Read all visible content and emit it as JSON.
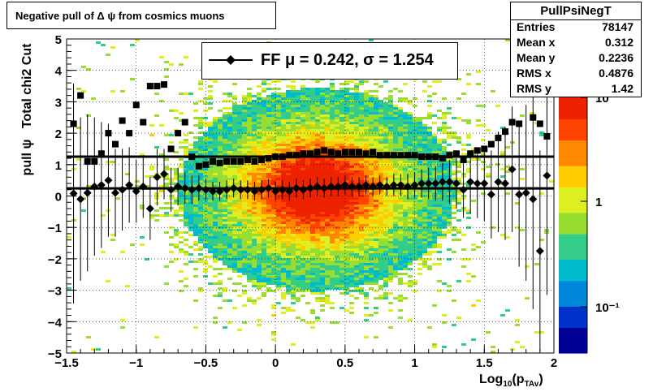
{
  "title": "Negative pull of Δ ψ from cosmics muons",
  "stats": {
    "name": "PullPsiNegT",
    "rows": [
      {
        "key": "Entries",
        "value": "78147"
      },
      {
        "key": "Mean x",
        "value": "0.312"
      },
      {
        "key": "Mean y",
        "value": "0.2236"
      },
      {
        "key": "RMS x",
        "value": "0.4876"
      },
      {
        "key": "RMS y",
        "value": "1.42"
      }
    ]
  },
  "legend": {
    "text": "FF μ =  0.242, σ =   1.254"
  },
  "colors": {
    "palette": [
      "#000099",
      "#0033cc",
      "#0088dd",
      "#00bbcc",
      "#33cc88",
      "#99dd33",
      "#ddee22",
      "#ffcc00",
      "#ff8800",
      "#ff4400",
      "#ee2200"
    ]
  },
  "chart_data": {
    "type": "heatmap",
    "title": "Negative pull of Δ ψ from cosmics muons",
    "xlabel": "Log10(pTAv)",
    "ylabel": "pull ψ   Total chi2 Cut",
    "xlim": [
      -1.5,
      2
    ],
    "ylim": [
      -5,
      5
    ],
    "x_ticks": [
      "−1.5",
      "−1",
      "−0.5",
      "0",
      "0.5",
      "1",
      "1.5",
      "2"
    ],
    "y_ticks": [
      "−5",
      "−4",
      "−3",
      "−2",
      "−1",
      "0",
      "1",
      "2",
      "3",
      "4",
      "5"
    ],
    "color_scale": {
      "log": true,
      "labels": [
        "10⁻¹",
        "1",
        "10"
      ]
    },
    "grid": true,
    "legend_position": "top-center",
    "fit_lines": [
      {
        "name": "mean",
        "value": 0.242
      },
      {
        "name": "sigma",
        "value": 1.254
      }
    ],
    "series": [
      {
        "name": "mean",
        "marker": "diamond",
        "x": [
          -1.45,
          -1.4,
          -1.35,
          -1.3,
          -1.25,
          -1.2,
          -1.15,
          -1.1,
          -1.05,
          -1.0,
          -0.95,
          -0.9,
          -0.85,
          -0.8,
          -0.75,
          -0.7,
          -0.65,
          -0.6,
          -0.55,
          -0.5,
          -0.45,
          -0.4,
          -0.35,
          -0.3,
          -0.25,
          -0.2,
          -0.15,
          -0.1,
          -0.05,
          0.0,
          0.05,
          0.1,
          0.15,
          0.2,
          0.25,
          0.3,
          0.35,
          0.4,
          0.45,
          0.5,
          0.55,
          0.6,
          0.65,
          0.7,
          0.75,
          0.8,
          0.85,
          0.9,
          0.95,
          1.0,
          1.05,
          1.1,
          1.15,
          1.2,
          1.25,
          1.3,
          1.35,
          1.4,
          1.45,
          1.5,
          1.55,
          1.6,
          1.65,
          1.7,
          1.75,
          1.8,
          1.85,
          1.9,
          1.95
        ],
        "y": [
          0.08,
          -0.1,
          0.1,
          0.3,
          0.35,
          0.5,
          0.1,
          0.2,
          0.35,
          0.15,
          0.3,
          -0.4,
          0.6,
          0.7,
          0.2,
          0.3,
          0.25,
          0.2,
          0.25,
          0.2,
          0.15,
          0.15,
          0.2,
          0.25,
          0.2,
          0.2,
          0.15,
          0.2,
          0.25,
          0.15,
          0.2,
          0.15,
          0.25,
          0.2,
          0.25,
          0.3,
          0.25,
          0.3,
          0.3,
          0.35,
          0.3,
          0.3,
          0.35,
          0.3,
          0.35,
          0.3,
          0.35,
          0.35,
          0.3,
          0.35,
          0.4,
          0.4,
          0.4,
          0.45,
          0.45,
          0.4,
          0.2,
          0.45,
          0.4,
          0.4,
          0.05,
          0.45,
          0.4,
          0.85,
          0.05,
          0.1,
          -0.1,
          -1.75,
          0.65
        ],
        "err": [
          3.5,
          2.6,
          2.5,
          2.2,
          2.0,
          1.8,
          1.4,
          1.3,
          1.2,
          1.0,
          1.0,
          1.0,
          0.9,
          0.8,
          0.7,
          0.6,
          0.5,
          0.45,
          0.4,
          0.35,
          0.3,
          0.3,
          0.3,
          0.3,
          0.3,
          0.3,
          0.3,
          0.3,
          0.3,
          0.3,
          0.3,
          0.3,
          0.3,
          0.3,
          0.3,
          0.3,
          0.3,
          0.3,
          0.3,
          0.3,
          0.3,
          0.3,
          0.3,
          0.3,
          0.3,
          0.3,
          0.35,
          0.35,
          0.4,
          0.4,
          0.45,
          0.5,
          0.55,
          0.6,
          0.7,
          0.8,
          0.9,
          1.0,
          1.1,
          1.2,
          1.4,
          1.6,
          1.8,
          2.0,
          2.3,
          2.8,
          3.5,
          3.2,
          3.8
        ]
      },
      {
        "name": "sigma",
        "marker": "square",
        "x": [
          -1.45,
          -1.4,
          -1.35,
          -1.3,
          -1.25,
          -1.2,
          -1.15,
          -1.1,
          -1.05,
          -1.0,
          -0.95,
          -0.9,
          -0.85,
          -0.8,
          -0.75,
          -0.7,
          -0.65,
          -0.6,
          -0.55,
          -0.5,
          -0.45,
          -0.4,
          -0.35,
          -0.3,
          -0.25,
          -0.2,
          -0.15,
          -0.1,
          -0.05,
          0.0,
          0.05,
          0.1,
          0.15,
          0.2,
          0.25,
          0.3,
          0.35,
          0.4,
          0.45,
          0.5,
          0.55,
          0.6,
          0.65,
          0.7,
          0.75,
          0.8,
          0.85,
          0.9,
          0.95,
          1.0,
          1.05,
          1.1,
          1.15,
          1.2,
          1.25,
          1.3,
          1.35,
          1.4,
          1.45,
          1.5,
          1.55,
          1.6,
          1.65,
          1.7,
          1.75,
          1.8,
          1.85,
          1.9,
          1.95
        ],
        "y": [
          2.3,
          3.2,
          1.1,
          1.1,
          1.35,
          2.0,
          1.65,
          2.4,
          2.0,
          2.9,
          2.35,
          3.5,
          3.5,
          3.55,
          1.5,
          2.0,
          2.35,
          1.25,
          0.95,
          1.0,
          1.1,
          1.05,
          1.1,
          1.1,
          1.1,
          1.15,
          1.1,
          1.15,
          1.2,
          1.25,
          1.25,
          1.3,
          1.3,
          1.35,
          1.35,
          1.4,
          1.45,
          1.4,
          1.35,
          1.4,
          1.4,
          1.4,
          1.35,
          1.4,
          1.3,
          1.3,
          1.3,
          1.3,
          1.3,
          1.3,
          1.25,
          1.25,
          1.25,
          1.2,
          1.3,
          1.35,
          1.15,
          1.35,
          1.45,
          1.5,
          1.65,
          1.85,
          2.05,
          2.35,
          2.3,
          3.35,
          2.5,
          2.3,
          1.9
        ]
      }
    ]
  }
}
